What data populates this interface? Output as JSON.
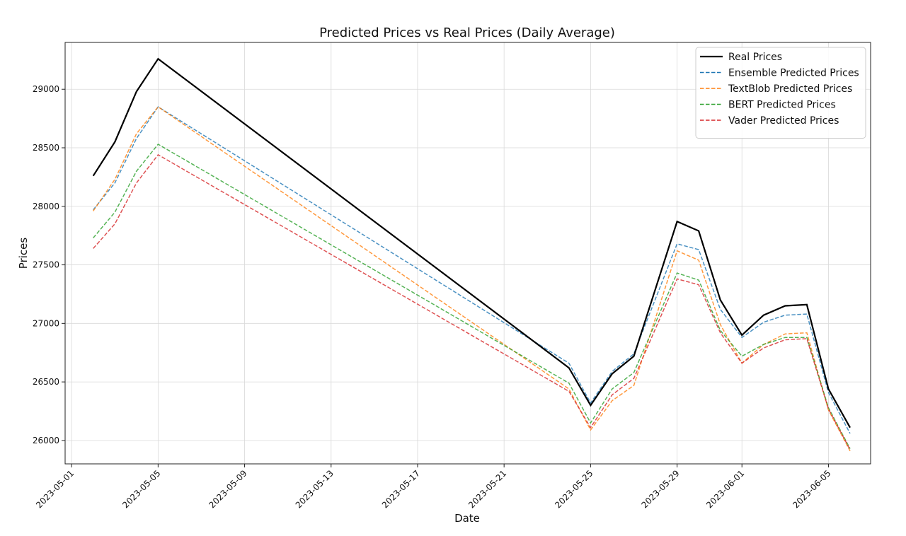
{
  "chart_data": {
    "type": "line",
    "title": "Predicted Prices vs Real Prices (Daily Average)",
    "xlabel": "Date",
    "ylabel": "Prices",
    "x_ticks": [
      "2023-05-01",
      "2023-05-05",
      "2023-05-09",
      "2023-05-13",
      "2023-05-17",
      "2023-05-21",
      "2023-05-25",
      "2023-05-29",
      "2023-06-01",
      "2023-06-05"
    ],
    "y_ticks": [
      26000,
      26500,
      27000,
      27500,
      28000,
      28500,
      29000
    ],
    "xlim": [
      "2023-04-30",
      "2023-06-07"
    ],
    "ylim": [
      25800,
      29400
    ],
    "grid": true,
    "legend_position": "top-right",
    "x": [
      "2023-05-02",
      "2023-05-03",
      "2023-05-04",
      "2023-05-05",
      "2023-05-24",
      "2023-05-25",
      "2023-05-26",
      "2023-05-27",
      "2023-05-29",
      "2023-05-30",
      "2023-05-31",
      "2023-06-01",
      "2023-06-02",
      "2023-06-03",
      "2023-06-04",
      "2023-06-05",
      "2023-06-06"
    ],
    "series": [
      {
        "name": "Real Prices",
        "color": "#000000",
        "style": "solid",
        "values": [
          28260,
          28550,
          28980,
          29260,
          26620,
          26300,
          26570,
          26720,
          27870,
          27790,
          27200,
          26900,
          27070,
          27150,
          27160,
          26440,
          26110
        ]
      },
      {
        "name": "Ensemble Predicted Prices",
        "color": "#1f77b4",
        "style": "dashed",
        "values": [
          27970,
          28200,
          28580,
          28850,
          26660,
          26320,
          26590,
          26740,
          27680,
          27630,
          27120,
          26880,
          27010,
          27070,
          27080,
          26410,
          26060
        ]
      },
      {
        "name": "TextBlob Predicted Prices",
        "color": "#ff7f0e",
        "style": "dashed",
        "values": [
          27960,
          28230,
          28620,
          28850,
          26440,
          26090,
          26340,
          26470,
          27620,
          27540,
          26990,
          26660,
          26820,
          26910,
          26920,
          26260,
          25910
        ]
      },
      {
        "name": "BERT Predicted Prices",
        "color": "#2ca02c",
        "style": "dashed",
        "values": [
          27730,
          27950,
          28300,
          28530,
          26490,
          26150,
          26440,
          26580,
          27430,
          27370,
          26940,
          26720,
          26820,
          26880,
          26880,
          26280,
          25930
        ]
      },
      {
        "name": "Vader Predicted Prices",
        "color": "#d62728",
        "style": "dashed",
        "values": [
          27640,
          27850,
          28200,
          28440,
          26420,
          26110,
          26390,
          26530,
          27380,
          27330,
          26920,
          26660,
          26790,
          26860,
          26870,
          26270,
          25920
        ]
      }
    ]
  }
}
